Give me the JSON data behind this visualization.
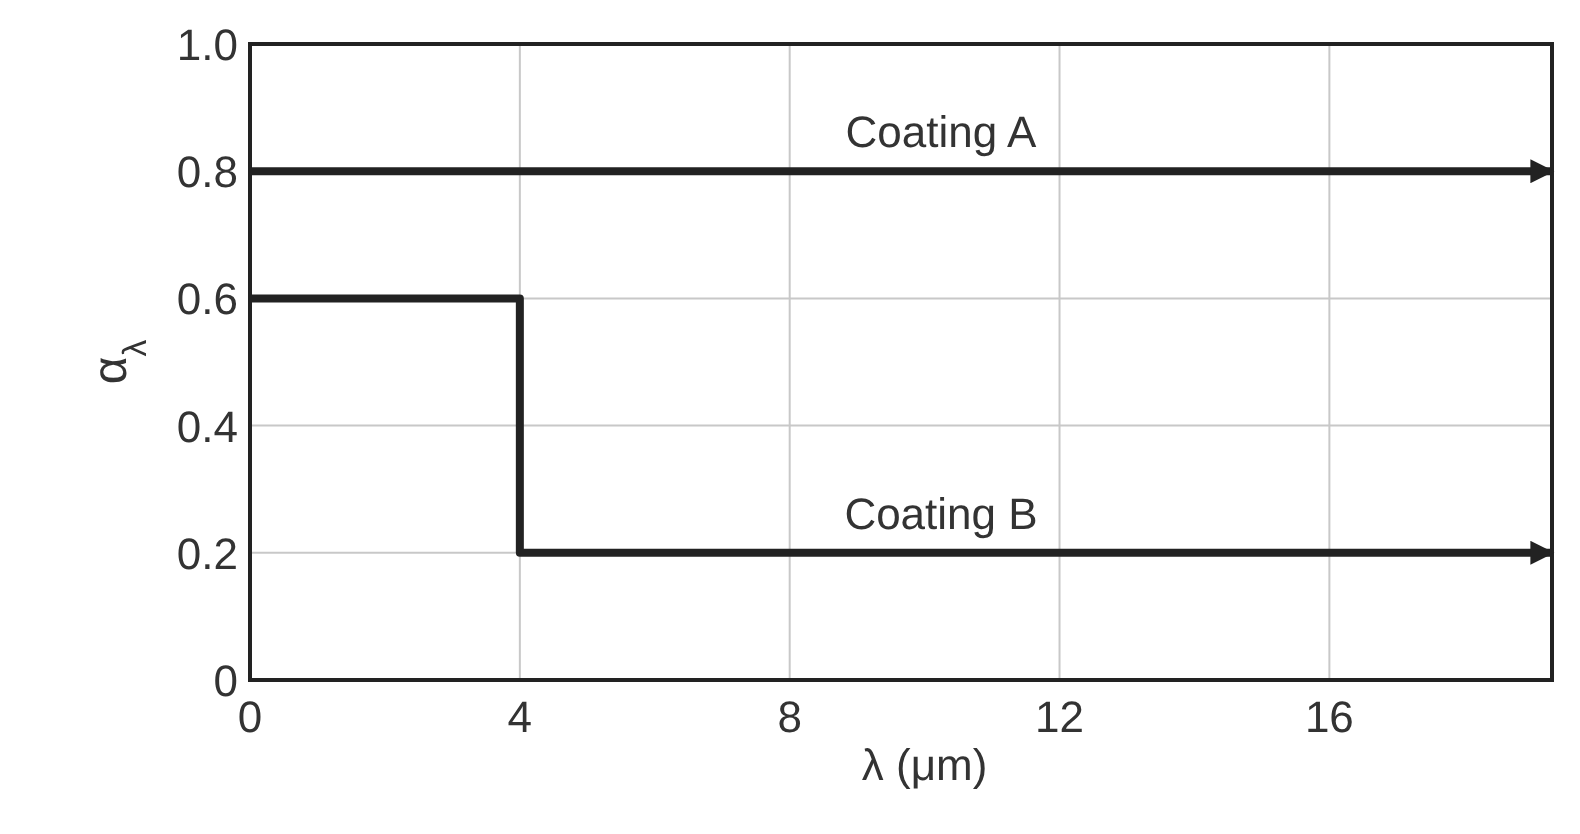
{
  "chart_data": {
    "type": "step",
    "xlabel": "λ (μm)",
    "ylabel": "α$_{λ}$",
    "xlim": [
      0,
      19.3
    ],
    "ylim": [
      0,
      1.0
    ],
    "xticks": [
      0,
      4,
      8,
      12,
      16
    ],
    "yticks": [
      0,
      0.2,
      0.4,
      0.6,
      0.8,
      {
        "value": 1.0,
        "label": "1.0"
      }
    ],
    "grid": true,
    "series": [
      {
        "name": "Coating A",
        "color": "#222222",
        "x": [
          0,
          19.3
        ],
        "values": [
          0.8,
          0.8
        ]
      },
      {
        "name": "Coating B",
        "color": "#222222",
        "x": [
          0,
          4,
          19.3
        ],
        "values": [
          0.6,
          0.2,
          0.2
        ]
      }
    ]
  }
}
